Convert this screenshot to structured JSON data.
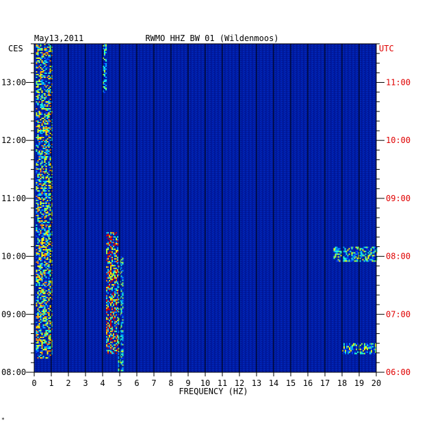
{
  "chart_data": {
    "type": "heatmap",
    "title": "RWMO HHZ BW 01 (Wildenmoos)",
    "date": "May13,2011",
    "xlabel": "FREQUENCY (HZ)",
    "x_ticks": [
      "0",
      "1",
      "2",
      "3",
      "4",
      "5",
      "6",
      "7",
      "8",
      "9",
      "10",
      "11",
      "12",
      "13",
      "14",
      "15",
      "16",
      "17",
      "18",
      "19",
      "20"
    ],
    "xlim": [
      0,
      20
    ],
    "left_axis": {
      "timezone": "CES",
      "ticks": [
        "13:00",
        "12:00",
        "11:00",
        "10:00",
        "09:00",
        "08:00"
      ],
      "range": [
        "08:00",
        "13:40"
      ]
    },
    "right_axis": {
      "timezone": "UTC",
      "ticks": [
        "11:00",
        "10:00",
        "09:00",
        "08:00",
        "07:00",
        "06:00"
      ],
      "range": [
        "06:00",
        "11:40"
      ]
    },
    "grid": true,
    "colormap": [
      "#00007f",
      "#0000cc",
      "#0040ff",
      "#00a0ff",
      "#20ffd0",
      "#a0ff40",
      "#ffff00",
      "#ff8000",
      "#e00000"
    ],
    "background_value_color": "#001a9e",
    "features": [
      {
        "name": "low-frequency band",
        "freq_hz": [
          0.1,
          1.0
        ],
        "time_ces": [
          "08:15",
          "13:40"
        ],
        "intensity": 0.7
      },
      {
        "name": "line near 4.1 Hz",
        "freq_hz": [
          4.0,
          4.2
        ],
        "time_ces": [
          "12:50",
          "13:40"
        ],
        "intensity": 0.5
      },
      {
        "name": "burst band 4.2-4.9 Hz",
        "freq_hz": [
          4.2,
          4.9
        ],
        "time_ces": [
          "08:20",
          "10:25"
        ],
        "intensity": 0.9
      },
      {
        "name": "drifting line ~5 Hz",
        "freq_hz": [
          4.9,
          5.2
        ],
        "time_ces": [
          "08:00",
          "10:00"
        ],
        "intensity": 0.55
      },
      {
        "name": "high-frequency burst",
        "freq_hz": [
          17.5,
          20.0
        ],
        "time_ces": [
          "09:55",
          "10:10"
        ],
        "intensity": 0.6
      },
      {
        "name": "high-frequency burst",
        "freq_hz": [
          18.0,
          20.0
        ],
        "time_ces": [
          "08:20",
          "08:30"
        ],
        "intensity": 0.6
      }
    ]
  },
  "footer_mark": "*"
}
